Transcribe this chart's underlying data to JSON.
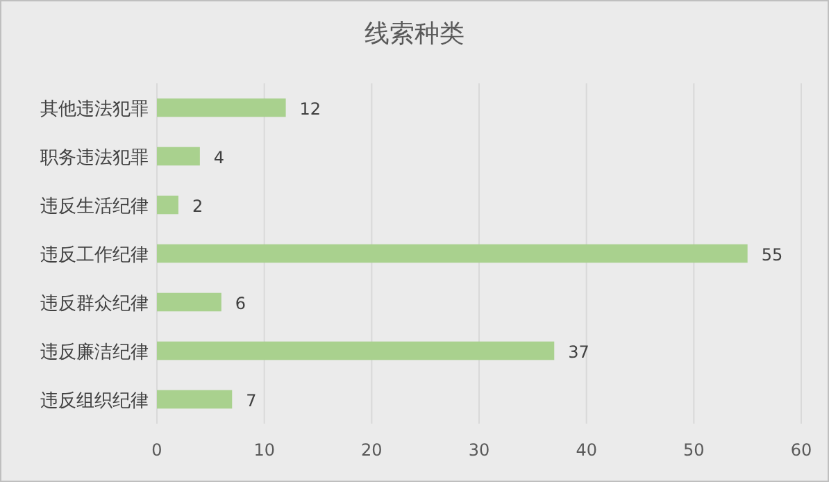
{
  "chart_data": {
    "type": "bar",
    "title": "线索种类",
    "orientation": "horizontal",
    "categories": [
      "其他违法犯罪",
      "职务违法犯罪",
      "违反生活纪律",
      "违反工作纪律",
      "违反群众纪律",
      "违反廉洁纪律",
      "违反组织纪律"
    ],
    "values": [
      12,
      4,
      2,
      55,
      6,
      37,
      7
    ],
    "color": "#a9d18e",
    "xlim": [
      0,
      60
    ],
    "xticks": [
      0,
      10,
      20,
      30,
      40,
      50,
      60
    ],
    "grid": "x",
    "data_labels": true
  }
}
